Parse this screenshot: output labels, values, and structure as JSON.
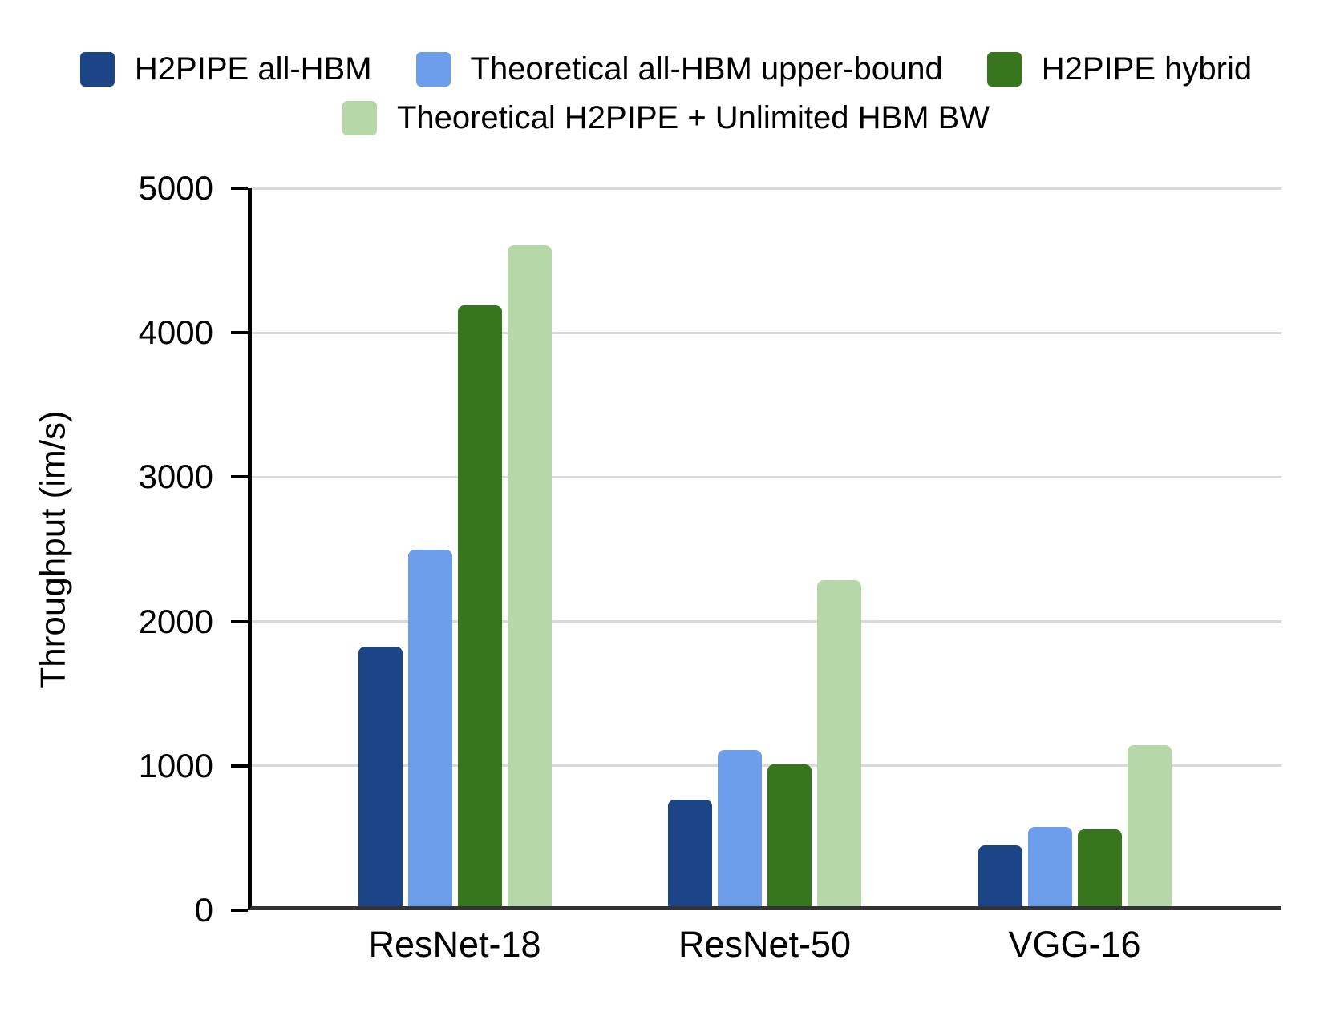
{
  "chart_data": {
    "type": "bar",
    "title": "",
    "xlabel": "",
    "ylabel": "Throughput (im/s)",
    "categories": [
      "ResNet-18",
      "ResNet-50",
      "VGG-16"
    ],
    "series": [
      {
        "name": "H2PIPE all-HBM",
        "color": "#1c4587",
        "values": [
          1800,
          740,
          420
        ]
      },
      {
        "name": "Theoretical all-HBM upper-bound",
        "color": "#6d9eeb",
        "values": [
          2470,
          1080,
          550
        ]
      },
      {
        "name": "H2PIPE hybrid",
        "color": "#38761d",
        "values": [
          4160,
          985,
          535
        ]
      },
      {
        "name": "Theoretical H2PIPE + Unlimited HBM BW",
        "color": "#b6d7a8",
        "values": [
          4580,
          2260,
          1115
        ]
      }
    ],
    "ylim": [
      0,
      5000
    ],
    "yticks": [
      0,
      1000,
      2000,
      3000,
      4000,
      5000
    ],
    "grid": true,
    "legend_position": "top",
    "legend_rows": [
      [
        0,
        1,
        2
      ],
      [
        3
      ]
    ]
  },
  "colors": {
    "background": "#ffffff",
    "gridline": "#d9d9d9",
    "y_axis": "#000000",
    "x_axis": "#333333",
    "text": "#000000"
  }
}
